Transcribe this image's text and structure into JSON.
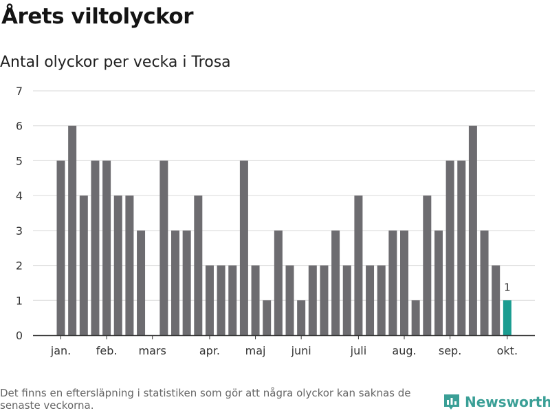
{
  "header": {
    "title": "Årets viltolyckor",
    "subtitle": "Antal olyckor per vecka i Trosa"
  },
  "footer": {
    "note": "Det finns en eftersläpning i statistiken som gör att några olyckor kan saknas de senaste veckorna.",
    "brand": "Newsworthy"
  },
  "colors": {
    "bar": "#6d6c70",
    "highlight": "#1a9c90",
    "grid": "#d9d9d9",
    "brand": "#3a9f96"
  },
  "icons": {
    "brand_logo": "newsworthy-chart-logo-icon"
  },
  "chart_data": {
    "type": "bar",
    "title": "Årets viltolyckor",
    "subtitle": "Antal olyckor per vecka i Trosa",
    "xlabel": "",
    "ylabel": "",
    "ylim": [
      0,
      7
    ],
    "yticks": [
      0,
      1,
      2,
      3,
      4,
      5,
      6,
      7
    ],
    "grid": true,
    "weeks": [
      1,
      2,
      3,
      4,
      5,
      6,
      7,
      8,
      9,
      10,
      11,
      12,
      13,
      14,
      15,
      16,
      17,
      18,
      19,
      20,
      21,
      22,
      23,
      24,
      25,
      26,
      27,
      28,
      29,
      30,
      31,
      32,
      33,
      34,
      35,
      36,
      37,
      38,
      39,
      40
    ],
    "values": [
      5,
      6,
      4,
      5,
      5,
      4,
      4,
      3,
      0,
      5,
      3,
      3,
      4,
      2,
      2,
      2,
      5,
      2,
      1,
      3,
      2,
      1,
      2,
      2,
      3,
      2,
      4,
      2,
      2,
      3,
      3,
      1,
      4,
      3,
      5,
      5,
      6,
      3,
      2,
      1
    ],
    "highlight_index": 39,
    "highlight_label": "1",
    "month_labels": [
      {
        "label": "jan.",
        "week": 1
      },
      {
        "label": "feb.",
        "week": 5
      },
      {
        "label": "mars",
        "week": 9
      },
      {
        "label": "apr.",
        "week": 14
      },
      {
        "label": "maj",
        "week": 18
      },
      {
        "label": "juni",
        "week": 22
      },
      {
        "label": "juli",
        "week": 27
      },
      {
        "label": "aug.",
        "week": 31
      },
      {
        "label": "sep.",
        "week": 35
      },
      {
        "label": "okt.",
        "week": 40
      }
    ]
  }
}
